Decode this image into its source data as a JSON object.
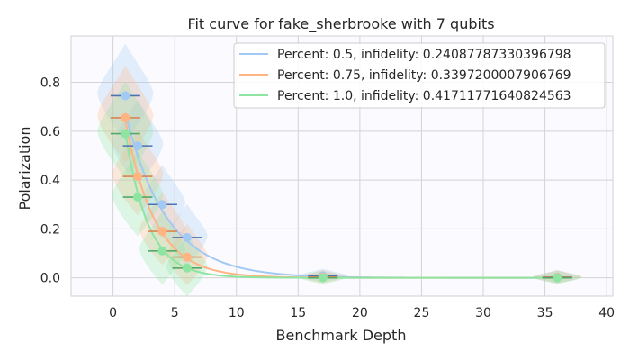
{
  "chart_data": {
    "type": "scatter",
    "title": "Fit curve for fake_sherbrooke with 7 qubits",
    "xlabel": "Benchmark Depth",
    "ylabel": "Polarization",
    "xlim": [
      -3.4,
      40.5
    ],
    "ylim": [
      -0.075,
      0.99
    ],
    "x_ticks": [
      0,
      5,
      10,
      15,
      20,
      25,
      30,
      35,
      40
    ],
    "y_ticks": [
      0.0,
      0.2,
      0.4,
      0.6,
      0.8
    ],
    "x_tick_labels": [
      "0",
      "5",
      "10",
      "15",
      "20",
      "25",
      "30",
      "35",
      "40"
    ],
    "y_tick_labels": [
      "0.0",
      "0.2",
      "0.4",
      "0.6",
      "0.8"
    ],
    "grid": true,
    "legend_position": "top-right",
    "series": [
      {
        "name": "Percent: 0.5, infidelity: 0.24087787330396798",
        "color": "#a1c9f4",
        "errcolor": "#4c72b0",
        "points": [
          {
            "x": 1,
            "y": 0.745,
            "xerr": 1.2
          },
          {
            "x": 2,
            "y": 0.54,
            "xerr": 1.2
          },
          {
            "x": 4,
            "y": 0.3,
            "xerr": 1.2
          },
          {
            "x": 6,
            "y": 0.165,
            "xerr": 1.2
          },
          {
            "x": 17,
            "y": 0.008,
            "xerr": 1.2
          },
          {
            "x": 36,
            "y": 0.003,
            "xerr": 1.2
          }
        ],
        "fit": {
          "a": 0.91,
          "b": 0.3
        }
      },
      {
        "name": "Percent: 0.75, infidelity: 0.3397200007906769",
        "color": "#ffb482",
        "errcolor": "#dd8452",
        "points": [
          {
            "x": 1,
            "y": 0.655,
            "xerr": 1.2
          },
          {
            "x": 2,
            "y": 0.415,
            "xerr": 1.2
          },
          {
            "x": 4,
            "y": 0.19,
            "xerr": 1.2
          },
          {
            "x": 6,
            "y": 0.085,
            "xerr": 1.2
          },
          {
            "x": 17,
            "y": 0.003,
            "xerr": 1.2
          },
          {
            "x": 36,
            "y": 0.002,
            "xerr": 1.2
          }
        ],
        "fit": {
          "a": 0.98,
          "b": 0.42
        }
      },
      {
        "name": "Percent: 1.0, infidelity: 0.41711771640824563",
        "color": "#8de5a1",
        "errcolor": "#55a868",
        "points": [
          {
            "x": 1,
            "y": 0.59,
            "xerr": 1.2
          },
          {
            "x": 2,
            "y": 0.33,
            "xerr": 1.2
          },
          {
            "x": 4,
            "y": 0.11,
            "xerr": 1.2
          },
          {
            "x": 6,
            "y": 0.04,
            "xerr": 1.2
          },
          {
            "x": 17,
            "y": 0.0,
            "xerr": 1.2
          },
          {
            "x": 36,
            "y": 0.0,
            "xerr": 1.2
          }
        ],
        "fit": {
          "a": 1.02,
          "b": 0.54
        }
      }
    ]
  }
}
